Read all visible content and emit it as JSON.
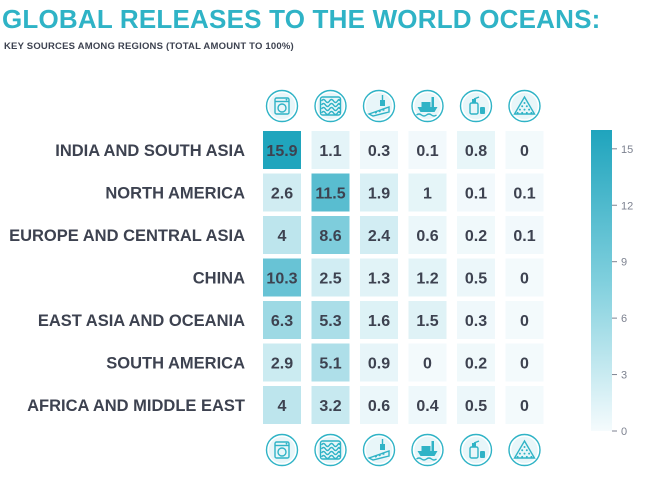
{
  "title": "GLOBAL RELEASES TO THE WORLD OCEANS:",
  "subtitle": "KEY SOURCES AMONG REGIONS (TOTAL AMOUNT TO 100%)",
  "colors": {
    "accent": "#2fb3c6",
    "text": "#3d4250",
    "scale_low": "#f3fafc",
    "scale_high": "#1fa4bd"
  },
  "chart_data": {
    "type": "heatmap",
    "rows": [
      "INDIA AND SOUTH ASIA",
      "NORTH AMERICA",
      "EUROPE AND CENTRAL ASIA",
      "CHINA",
      "EAST ASIA AND OCEANIA",
      "SOUTH AMERICA",
      "AFRICA AND MIDDLE EAST"
    ],
    "column_icons": [
      "washing-machine-icon",
      "tire-icon",
      "road-marking-icon",
      "ship-icon",
      "cosmetics-icon",
      "pellet-icon"
    ],
    "values": [
      [
        "15.9",
        "1.1",
        "0.3",
        "0.1",
        "0.8",
        "0"
      ],
      [
        "2.6",
        "11.5",
        "1.9",
        "1",
        "0.1",
        "0.1"
      ],
      [
        "4",
        "8.6",
        "2.4",
        "0.6",
        "0.2",
        "0.1"
      ],
      [
        "10.3",
        "2.5",
        "1.3",
        "1.2",
        "0.5",
        "0"
      ],
      [
        "6.3",
        "5.3",
        "1.6",
        "1.5",
        "0.3",
        "0"
      ],
      [
        "2.9",
        "5.1",
        "0.9",
        "0",
        "0.2",
        "0"
      ],
      [
        "4",
        "3.2",
        "0.6",
        "0.4",
        "0.5",
        "0"
      ]
    ],
    "colorbar": {
      "min": 0,
      "max": 16,
      "ticks": [
        "15",
        "12",
        "9",
        "6",
        "3",
        "0"
      ]
    }
  }
}
